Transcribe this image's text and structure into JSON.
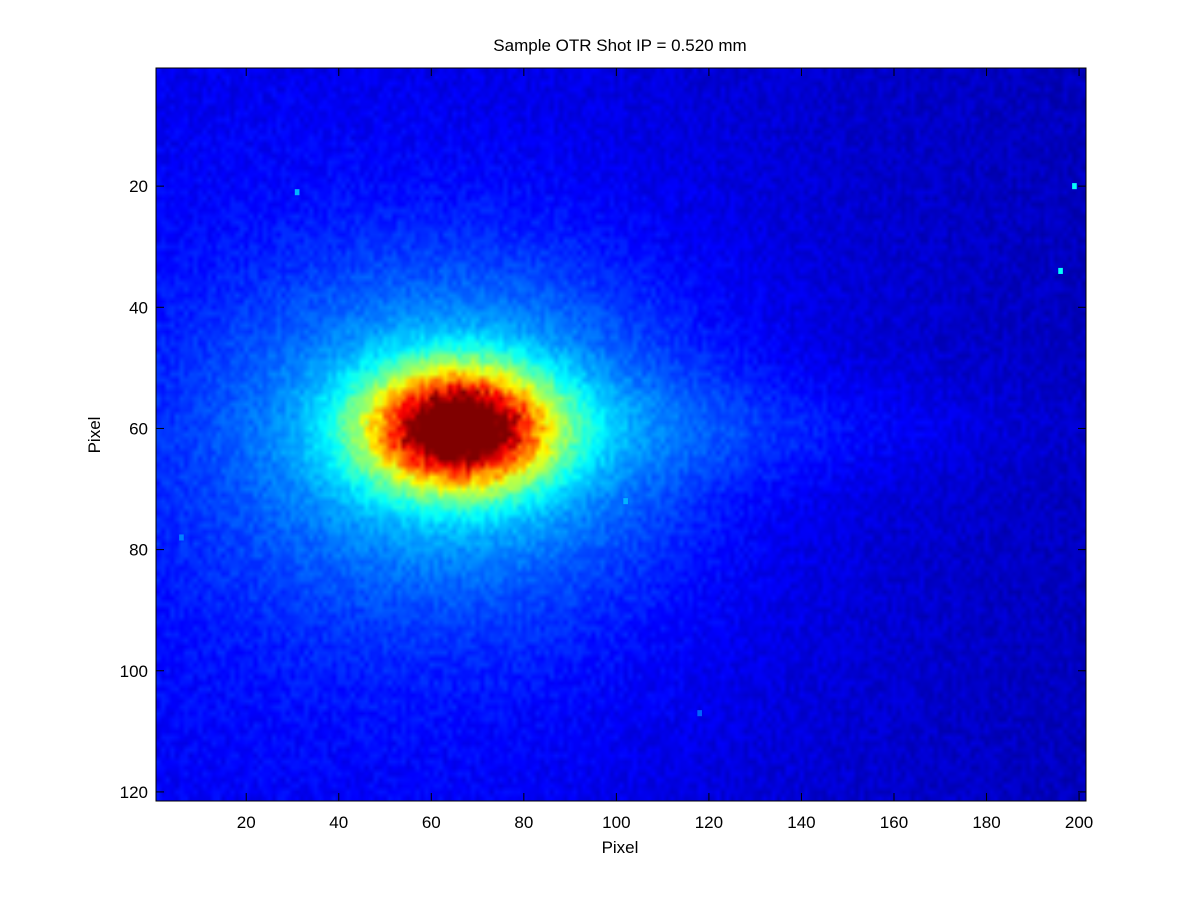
{
  "chart_data": {
    "type": "heatmap",
    "title": "Sample OTR Shot IP = 0.520 mm",
    "xlabel": "Pixel",
    "ylabel": "Pixel",
    "xlim": [
      0.5,
      201.5
    ],
    "ylim": [
      0.5,
      121.5
    ],
    "y_axis_reversed": true,
    "x_ticks": [
      20,
      40,
      60,
      80,
      100,
      120,
      140,
      160,
      180,
      200
    ],
    "y_ticks": [
      20,
      40,
      60,
      80,
      100,
      120
    ],
    "colormap": "jet",
    "grid": false,
    "color_range": [
      0,
      1
    ],
    "image_size": {
      "columns": 201,
      "rows": 121
    },
    "beam_spot": {
      "peak_x": 66,
      "peak_y": 60,
      "peak_intensity": 1.0,
      "halo_radius_x": 33,
      "halo_radius_y": 18,
      "background_level": 0.06
    },
    "hot_pixels": [
      {
        "x": 31,
        "y": 21,
        "intensity": 0.3
      },
      {
        "x": 199,
        "y": 20,
        "intensity": 0.38
      },
      {
        "x": 196,
        "y": 34,
        "intensity": 0.38
      },
      {
        "x": 102,
        "y": 72,
        "intensity": 0.3
      },
      {
        "x": 6,
        "y": 78,
        "intensity": 0.25
      },
      {
        "x": 118,
        "y": 107,
        "intensity": 0.22
      }
    ]
  }
}
